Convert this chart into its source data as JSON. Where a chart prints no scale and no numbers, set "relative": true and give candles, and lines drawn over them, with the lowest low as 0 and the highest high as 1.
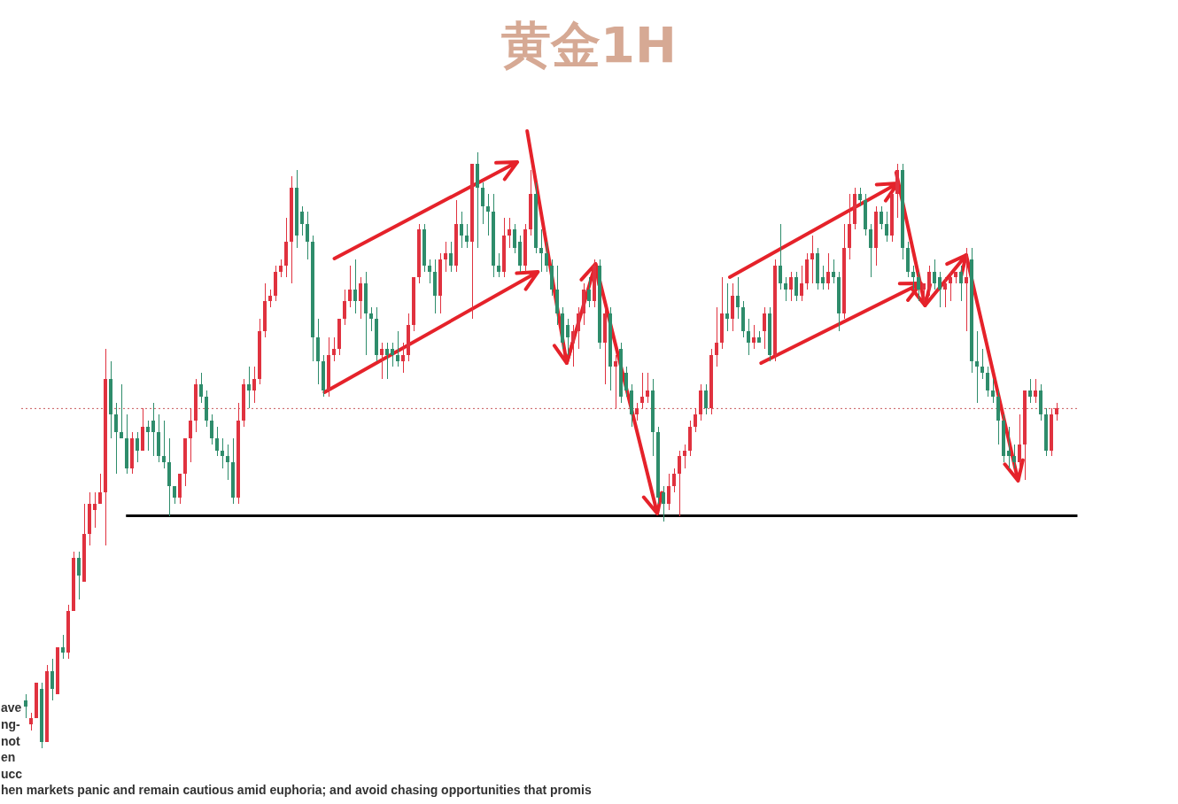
{
  "chart_data": {
    "type": "candlestick",
    "title": "黄金1H",
    "relative": true,
    "tick_labels": false,
    "categories": [
      null,
      null,
      null,
      null,
      null,
      null,
      null,
      null,
      null,
      null,
      null,
      null,
      null,
      null,
      null,
      null,
      null,
      null,
      null,
      null,
      null,
      null,
      null,
      null,
      null,
      null,
      null,
      null,
      null,
      null,
      null,
      null,
      null,
      null,
      null,
      null,
      null,
      null,
      null,
      null,
      null,
      null,
      null,
      null,
      null,
      null,
      null,
      null,
      null,
      null,
      null,
      null,
      null,
      null,
      null,
      null,
      null,
      null,
      null,
      null,
      null,
      null,
      null,
      null,
      null,
      null,
      null,
      null,
      null,
      null,
      null,
      null,
      null,
      null,
      null,
      null,
      null,
      null,
      null,
      null,
      null,
      null,
      null,
      null,
      null,
      null,
      null,
      null,
      null,
      null,
      null,
      null,
      null,
      null,
      null,
      null,
      null,
      null,
      null,
      null,
      null,
      null,
      null,
      null,
      null,
      null,
      null,
      null,
      null,
      null,
      null,
      null,
      null,
      null,
      null,
      null,
      null,
      null,
      null,
      null,
      null,
      null,
      null,
      null,
      null,
      null,
      null,
      null,
      null,
      null,
      null,
      null,
      null,
      null,
      null,
      null,
      null,
      null,
      null,
      null,
      null,
      null,
      null,
      null,
      null,
      null,
      null,
      null,
      null,
      null,
      null,
      null,
      null,
      null,
      null,
      null,
      null,
      null,
      null,
      null,
      null,
      null,
      null,
      null,
      null,
      null,
      null,
      null,
      null,
      null,
      null,
      null,
      null,
      null,
      null,
      null,
      null,
      null,
      null,
      null,
      null,
      null,
      null,
      null,
      null,
      null,
      null,
      null,
      null,
      null,
      null,
      null,
      null,
      null,
      null
    ],
    "ohlc": [
      [
        0.08,
        0.09,
        0.05,
        0.07
      ],
      [
        0.04,
        0.06,
        0.03,
        0.05
      ],
      [
        0.05,
        0.11,
        0.05,
        0.11
      ],
      [
        0.1,
        0.11,
        0,
        0.01
      ],
      [
        0.01,
        0.14,
        0.01,
        0.13
      ],
      [
        0.13,
        0.15,
        0.08,
        0.1
      ],
      [
        0.09,
        0.17,
        0.09,
        0.17
      ],
      [
        0.17,
        0.19,
        0.15,
        0.16
      ],
      [
        0.16,
        0.24,
        0.15,
        0.23
      ],
      [
        0.23,
        0.33,
        0.23,
        0.32
      ],
      [
        0.32,
        0.33,
        0.25,
        0.29
      ],
      [
        0.28,
        0.41,
        0.28,
        0.36
      ],
      [
        0.36,
        0.43,
        0.34,
        0.41
      ],
      [
        0.4,
        0.43,
        0.37,
        0.41
      ],
      [
        0.41,
        0.46,
        0.41,
        0.43
      ],
      [
        0.43,
        0.67,
        0.34,
        0.62
      ],
      [
        0.62,
        0.65,
        0.52,
        0.56
      ],
      [
        0.56,
        0.58,
        0.46,
        0.53
      ],
      [
        0.53,
        0.61,
        0.52,
        0.52
      ],
      [
        0.52,
        0.56,
        0.46,
        0.47
      ],
      [
        0.47,
        0.53,
        0.46,
        0.52
      ],
      [
        0.52,
        0.53,
        0.48,
        0.5
      ],
      [
        0.5,
        0.57,
        0.5,
        0.54
      ],
      [
        0.54,
        0.55,
        0.5,
        0.53
      ],
      [
        0.55,
        0.58,
        0.49,
        0.53
      ],
      [
        0.53,
        0.56,
        0.48,
        0.49
      ],
      [
        0.49,
        0.55,
        0.47,
        0.48
      ],
      [
        0.48,
        0.52,
        0.39,
        0.44
      ],
      [
        0.44,
        0.44,
        0.41,
        0.42
      ],
      [
        0.42,
        0.46,
        0.41,
        0.46
      ],
      [
        0.46,
        0.52,
        0.44,
        0.52
      ],
      [
        0.52,
        0.57,
        0.48,
        0.55
      ],
      [
        0.55,
        0.62,
        0.53,
        0.61
      ],
      [
        0.61,
        0.63,
        0.58,
        0.59
      ],
      [
        0.59,
        0.6,
        0.54,
        0.55
      ],
      [
        0.55,
        0.56,
        0.51,
        0.52
      ],
      [
        0.52,
        0.54,
        0.49,
        0.5
      ],
      [
        0.5,
        0.52,
        0.47,
        0.49
      ],
      [
        0.49,
        0.51,
        0.45,
        0.48
      ],
      [
        0.48,
        0.52,
        0.41,
        0.42
      ],
      [
        0.42,
        0.58,
        0.41,
        0.55
      ],
      [
        0.55,
        0.62,
        0.54,
        0.61
      ],
      [
        0.61,
        0.64,
        0.57,
        0.6
      ],
      [
        0.6,
        0.64,
        0.58,
        0.62
      ],
      [
        0.62,
        0.72,
        0.61,
        0.7
      ],
      [
        0.7,
        0.78,
        0.69,
        0.75
      ],
      [
        0.75,
        0.77,
        0.74,
        0.76
      ],
      [
        0.76,
        0.81,
        0.75,
        0.8
      ],
      [
        0.8,
        0.82,
        0.79,
        0.81
      ],
      [
        0.81,
        0.89,
        0.79,
        0.85
      ],
      [
        0.85,
        0.96,
        0.78,
        0.94
      ],
      [
        0.94,
        0.97,
        0.84,
        0.86
      ],
      [
        0.9,
        0.91,
        0.86,
        0.88
      ],
      [
        0.88,
        0.9,
        0.82,
        0.85
      ],
      [
        0.85,
        0.86,
        0.65,
        0.69
      ],
      [
        0.69,
        0.72,
        0.61,
        0.65
      ],
      [
        0.65,
        0.66,
        0.59,
        0.6
      ],
      [
        0.6,
        0.69,
        0.59,
        0.66
      ],
      [
        0.66,
        0.69,
        0.65,
        0.67
      ],
      [
        0.67,
        0.72,
        0.66,
        0.72
      ],
      [
        0.72,
        0.77,
        0.71,
        0.75
      ],
      [
        0.75,
        0.81,
        0.74,
        0.77
      ],
      [
        0.77,
        0.82,
        0.73,
        0.75
      ],
      [
        0.75,
        0.79,
        0.72,
        0.78
      ],
      [
        0.78,
        0.8,
        0.66,
        0.73
      ],
      [
        0.73,
        0.74,
        0.7,
        0.72
      ],
      [
        0.72,
        0.74,
        0.65,
        0.66
      ],
      [
        0.66,
        0.68,
        0.62,
        0.67
      ],
      [
        0.67,
        0.68,
        0.62,
        0.66
      ],
      [
        0.67,
        0.68,
        0.64,
        0.66
      ],
      [
        0.66,
        0.7,
        0.64,
        0.65
      ],
      [
        0.65,
        0.68,
        0.63,
        0.66
      ],
      [
        0.66,
        0.73,
        0.65,
        0.71
      ],
      [
        0.71,
        0.79,
        0.7,
        0.79
      ],
      [
        0.79,
        0.88,
        0.78,
        0.87
      ],
      [
        0.87,
        0.88,
        0.8,
        0.81
      ],
      [
        0.81,
        0.82,
        0.78,
        0.8
      ],
      [
        0.8,
        0.82,
        0.73,
        0.76
      ],
      [
        0.76,
        0.83,
        0.73,
        0.82
      ],
      [
        0.82,
        0.85,
        0.8,
        0.83
      ],
      [
        0.83,
        0.85,
        0.8,
        0.81
      ],
      [
        0.81,
        0.92,
        0.8,
        0.88
      ],
      [
        0.88,
        0.9,
        0.84,
        0.86
      ],
      [
        0.86,
        0.88,
        0.84,
        0.85
      ],
      [
        0.85,
        0.98,
        0.72,
        0.98
      ],
      [
        0.98,
        1,
        0.84,
        0.94
      ],
      [
        0.94,
        0.95,
        0.88,
        0.91
      ],
      [
        0.91,
        0.93,
        0.86,
        0.9
      ],
      [
        0.9,
        0.93,
        0.79,
        0.81
      ],
      [
        0.81,
        0.83,
        0.79,
        0.8
      ],
      [
        0.8,
        0.89,
        0.79,
        0.86
      ],
      [
        0.86,
        0.89,
        0.84,
        0.87
      ],
      [
        0.87,
        0.88,
        0.83,
        0.84
      ],
      [
        0.85,
        0.86,
        0.8,
        0.81
      ],
      [
        0.81,
        0.88,
        0.8,
        0.87
      ],
      [
        0.87,
        0.97,
        0.86,
        0.93
      ],
      [
        0.93,
        0.95,
        0.83,
        0.84
      ],
      [
        0.84,
        0.87,
        0.8,
        0.83
      ],
      [
        0.83,
        0.85,
        0.8,
        0.81
      ],
      [
        0.81,
        0.82,
        0.76,
        0.77
      ],
      [
        0.77,
        0.81,
        0.71,
        0.73
      ],
      [
        0.73,
        0.74,
        0.67,
        0.68
      ],
      [
        0.71,
        0.72,
        0.66,
        0.69
      ],
      [
        0.68,
        0.71,
        0.64,
        0.7
      ],
      [
        0.7,
        0.74,
        0.67,
        0.73
      ],
      [
        0.73,
        0.78,
        0.71,
        0.77
      ],
      [
        0.77,
        0.79,
        0.74,
        0.75
      ],
      [
        0.75,
        0.82,
        0.74,
        0.81
      ],
      [
        0.81,
        0.82,
        0.67,
        0.68
      ],
      [
        0.68,
        0.74,
        0.61,
        0.73
      ],
      [
        0.73,
        0.74,
        0.6,
        0.64
      ],
      [
        0.64,
        0.66,
        0.57,
        0.65
      ],
      [
        0.67,
        0.68,
        0.58,
        0.59
      ],
      [
        0.63,
        0.64,
        0.59,
        0.6
      ],
      [
        0.6,
        0.61,
        0.54,
        0.56
      ],
      [
        0.56,
        0.58,
        0.55,
        0.57
      ],
      [
        0.58,
        0.63,
        0.57,
        0.59
      ],
      [
        0.59,
        0.63,
        0.58,
        0.6
      ],
      [
        0.6,
        0.62,
        0.49,
        0.53
      ],
      [
        0.53,
        0.54,
        0.41,
        0.42
      ],
      [
        0.43,
        0.44,
        0.38,
        0.41
      ],
      [
        0.41,
        0.46,
        0.4,
        0.44
      ],
      [
        0.44,
        0.47,
        0.43,
        0.46
      ],
      [
        0.46,
        0.5,
        0.39,
        0.49
      ],
      [
        0.49,
        0.51,
        0.47,
        0.5
      ],
      [
        0.5,
        0.55,
        0.49,
        0.54
      ],
      [
        0.54,
        0.57,
        0.53,
        0.56
      ],
      [
        0.56,
        0.61,
        0.55,
        0.6
      ],
      [
        0.6,
        0.61,
        0.56,
        0.57
      ],
      [
        0.57,
        0.67,
        0.56,
        0.66
      ],
      [
        0.66,
        0.74,
        0.64,
        0.68
      ],
      [
        0.68,
        0.79,
        0.67,
        0.73
      ],
      [
        0.73,
        0.78,
        0.7,
        0.72
      ],
      [
        0.72,
        0.78,
        0.7,
        0.76
      ],
      [
        0.76,
        0.79,
        0.72,
        0.74
      ],
      [
        0.74,
        0.75,
        0.69,
        0.7
      ],
      [
        0.7,
        0.72,
        0.66,
        0.68
      ],
      [
        0.68,
        0.71,
        0.67,
        0.69
      ],
      [
        0.69,
        0.7,
        0.68,
        0.68
      ],
      [
        0.7,
        0.74,
        0.67,
        0.73
      ],
      [
        0.73,
        0.74,
        0.65,
        0.66
      ],
      [
        0.66,
        0.82,
        0.65,
        0.81
      ],
      [
        0.81,
        0.88,
        0.77,
        0.78
      ],
      [
        0.78,
        0.79,
        0.75,
        0.77
      ],
      [
        0.77,
        0.8,
        0.75,
        0.79
      ],
      [
        0.79,
        0.8,
        0.75,
        0.76
      ],
      [
        0.76,
        0.81,
        0.75,
        0.78
      ],
      [
        0.78,
        0.83,
        0.77,
        0.82
      ],
      [
        0.82,
        0.86,
        0.78,
        0.83
      ],
      [
        0.83,
        0.84,
        0.77,
        0.78
      ],
      [
        0.79,
        0.81,
        0.77,
        0.78
      ],
      [
        0.78,
        0.83,
        0.77,
        0.8
      ],
      [
        0.8,
        0.82,
        0.78,
        0.79
      ],
      [
        0.79,
        0.8,
        0.7,
        0.73
      ],
      [
        0.73,
        0.88,
        0.72,
        0.84
      ],
      [
        0.84,
        0.93,
        0.82,
        0.88
      ],
      [
        0.88,
        0.94,
        0.87,
        0.93
      ],
      [
        0.93,
        0.94,
        0.91,
        0.92
      ],
      [
        0.92,
        0.93,
        0.86,
        0.87
      ],
      [
        0.87,
        0.88,
        0.79,
        0.84
      ],
      [
        0.84,
        0.91,
        0.81,
        0.9
      ],
      [
        0.9,
        0.91,
        0.87,
        0.88
      ],
      [
        0.88,
        0.9,
        0.85,
        0.86
      ],
      [
        0.86,
        0.93,
        0.85,
        0.93
      ],
      [
        0.93,
        0.98,
        0.89,
        0.97
      ],
      [
        0.97,
        0.98,
        0.82,
        0.84
      ],
      [
        0.84,
        0.85,
        0.79,
        0.8
      ],
      [
        0.8,
        0.81,
        0.77,
        0.79
      ],
      [
        0.79,
        0.8,
        0.75,
        0.77
      ],
      [
        0.77,
        0.78,
        0.75,
        0.78
      ],
      [
        0.77,
        0.81,
        0.76,
        0.8
      ],
      [
        0.8,
        0.82,
        0.77,
        0.78
      ],
      [
        0.79,
        0.8,
        0.74,
        0.77
      ],
      [
        0.77,
        0.79,
        0.74,
        0.78
      ],
      [
        0.78,
        0.8,
        0.75,
        0.79
      ],
      [
        0.79,
        0.8,
        0.78,
        0.8
      ],
      [
        0.8,
        0.81,
        0.75,
        0.78
      ],
      [
        0.78,
        0.84,
        0.7,
        0.79
      ],
      [
        0.82,
        0.84,
        0.63,
        0.65
      ],
      [
        0.65,
        0.7,
        0.58,
        0.64
      ],
      [
        0.64,
        0.67,
        0.62,
        0.63
      ],
      [
        0.63,
        0.64,
        0.59,
        0.6
      ],
      [
        0.6,
        0.62,
        0.58,
        0.59
      ],
      [
        0.59,
        0.6,
        0.51,
        0.55
      ],
      [
        0.55,
        0.56,
        0.48,
        0.49
      ],
      [
        0.5,
        0.54,
        0.47,
        0.49
      ],
      [
        0.49,
        0.51,
        0.47,
        0.48
      ],
      [
        0.48,
        0.56,
        0.47,
        0.51
      ],
      [
        0.51,
        0.6,
        0.45,
        0.6
      ],
      [
        0.6,
        0.62,
        0.58,
        0.59
      ],
      [
        0.59,
        0.62,
        0.58,
        0.6
      ],
      [
        0.6,
        0.61,
        0.55,
        0.56
      ],
      [
        0.56,
        0.57,
        0.49,
        0.5
      ],
      [
        0.5,
        0.57,
        0.49,
        0.56
      ],
      [
        0.56,
        0.58,
        0.55,
        0.57
      ]
    ],
    "colors": [
      "#2e8c6b",
      "#e0323f",
      "#e0323f",
      "#2e8c6b",
      "#e0323f",
      "#2e8c6b",
      "#e0323f",
      "#2e8c6b",
      "#e0323f",
      "#e0323f",
      "#2e8c6b",
      "#e0323f",
      "#e0323f",
      "#e0323f",
      "#e0323f",
      "#e0323f",
      "#2e8c6b",
      "#2e8c6b",
      "#2e8c6b",
      "#2e8c6b",
      "#e0323f",
      "#2e8c6b",
      "#e0323f",
      "#2e8c6b",
      "#2e8c6b",
      "#2e8c6b",
      "#2e8c6b",
      "#2e8c6b",
      "#2e8c6b",
      "#e0323f",
      "#e0323f",
      "#e0323f",
      "#e0323f",
      "#2e8c6b",
      "#2e8c6b",
      "#2e8c6b",
      "#2e8c6b",
      "#2e8c6b",
      "#2e8c6b",
      "#2e8c6b",
      "#e0323f",
      "#e0323f",
      "#2e8c6b",
      "#e0323f",
      "#e0323f",
      "#e0323f",
      "#e0323f",
      "#e0323f",
      "#e0323f",
      "#e0323f",
      "#e0323f",
      "#2e8c6b",
      "#2e8c6b",
      "#2e8c6b",
      "#2e8c6b",
      "#2e8c6b",
      "#2e8c6b",
      "#e0323f",
      "#e0323f",
      "#e0323f",
      "#e0323f",
      "#e0323f",
      "#2e8c6b",
      "#e0323f",
      "#2e8c6b",
      "#2e8c6b",
      "#2e8c6b",
      "#e0323f",
      "#2e8c6b",
      "#2e8c6b",
      "#2e8c6b",
      "#e0323f",
      "#e0323f",
      "#e0323f",
      "#e0323f",
      "#2e8c6b",
      "#2e8c6b",
      "#2e8c6b",
      "#e0323f",
      "#e0323f",
      "#2e8c6b",
      "#e0323f",
      "#2e8c6b",
      "#2e8c6b",
      "#e0323f",
      "#2e8c6b",
      "#2e8c6b",
      "#2e8c6b",
      "#2e8c6b",
      "#2e8c6b",
      "#e0323f",
      "#e0323f",
      "#2e8c6b",
      "#2e8c6b",
      "#e0323f",
      "#e0323f",
      "#2e8c6b",
      "#2e8c6b",
      "#2e8c6b",
      "#2e8c6b",
      "#2e8c6b",
      "#2e8c6b",
      "#2e8c6b",
      "#e0323f",
      "#e0323f",
      "#e0323f",
      "#2e8c6b",
      "#e0323f",
      "#2e8c6b",
      "#e0323f",
      "#2e8c6b",
      "#e0323f",
      "#2e8c6b",
      "#2e8c6b",
      "#2e8c6b",
      "#e0323f",
      "#e0323f",
      "#e0323f",
      "#2e8c6b",
      "#2e8c6b",
      "#2e8c6b",
      "#e0323f",
      "#e0323f",
      "#e0323f",
      "#e0323f",
      "#e0323f",
      "#e0323f",
      "#e0323f",
      "#2e8c6b",
      "#e0323f",
      "#e0323f",
      "#e0323f",
      "#2e8c6b",
      "#e0323f",
      "#2e8c6b",
      "#2e8c6b",
      "#2e8c6b",
      "#e0323f",
      "#2e8c6b",
      "#e0323f",
      "#2e8c6b",
      "#e0323f",
      "#2e8c6b",
      "#2e8c6b",
      "#e0323f",
      "#2e8c6b",
      "#e0323f",
      "#e0323f",
      "#e0323f",
      "#2e8c6b",
      "#2e8c6b",
      "#e0323f",
      "#2e8c6b",
      "#2e8c6b",
      "#e0323f",
      "#e0323f",
      "#e0323f",
      "#2e8c6b",
      "#2e8c6b",
      "#2e8c6b",
      "#e0323f",
      "#2e8c6b",
      "#2e8c6b",
      "#e0323f",
      "#e0323f",
      "#2e8c6b",
      "#2e8c6b",
      "#2e8c6b",
      "#2e8c6b",
      "#e0323f",
      "#e0323f",
      "#2e8c6b",
      "#2e8c6b",
      "#e0323f",
      "#e0323f",
      "#e0323f",
      "#2e8c6b",
      "#e0323f",
      "#2e8c6b",
      "#2e8c6b",
      "#2e8c6b",
      "#2e8c6b",
      "#2e8c6b",
      "#2e8c6b",
      "#2e8c6b",
      "#2e8c6b",
      "#2e8c6b",
      "#e0323f",
      "#e0323f",
      "#2e8c6b",
      "#e0323f",
      "#2e8c6b",
      "#2e8c6b",
      "#e0323f",
      "#e0323f"
    ],
    "ref_lines": [
      {
        "axis": "y",
        "value": 0.57,
        "color": "#c8595c",
        "line_style": "dotted"
      },
      {
        "axis": "y",
        "value": 0.39,
        "color": "#000000",
        "line_style": "solid"
      }
    ],
    "annotations": [
      "ave",
      "ng-",
      "not",
      "en",
      "ucc",
      "hen markets panic and remain cautious amid euphoria; and avoid chasing opportunities that promis"
    ]
  }
}
